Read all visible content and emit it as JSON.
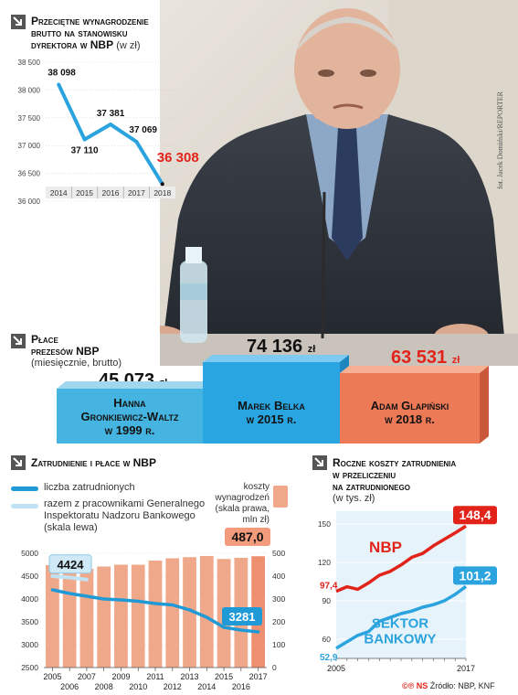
{
  "photo_credit": "fot. Jacek Domiński/REPORTER",
  "chart1": {
    "title_line1": "Przeciętne wynagrodzenie",
    "title_line2": "brutto na stanowisku",
    "title_line3": "dyrektora w NBP",
    "unit": "(w zł)"
  },
  "presidents": {
    "title_line1": "Płace",
    "title_line2": "prezesów NBP",
    "sub_line1": "(miesięcznie, brutto)",
    "items": [
      {
        "amount": "45 073",
        "unit": "zł",
        "name_line1": "Hanna",
        "name_line2": "Gronkiewicz-Waltz",
        "name_line3": "w 1999 r.",
        "value": 45073
      },
      {
        "amount": "74 136",
        "unit": "zł",
        "name_line1": "Marek Belka",
        "name_line2": "w 2015 r.",
        "value": 74136
      },
      {
        "amount": "63 531",
        "unit": "zł",
        "name_line1": "Adam Glapiński",
        "name_line2": "w 2018 r.",
        "value": 63531
      }
    ]
  },
  "chart2": {
    "title": "Zatrudnienie i płace w NBP",
    "legend_employees": "liczba zatrudnionych",
    "legend_total_line1": "razem z pracownikami Generalnego",
    "legend_total_line2": "Inspektoratu Nadzoru Bankowego",
    "legend_total_line3": "(skala lewa)",
    "legend_costs_line1": "koszty",
    "legend_costs_line2": "wynagrodzeń",
    "legend_costs_line3": "(skala prawa,",
    "legend_costs_line4": "mln zł)",
    "callout_total": "4424",
    "callout_employees": "3281",
    "callout_costs": "487,0"
  },
  "chart3": {
    "title_line1": "Roczne koszty zatrudnienia",
    "title_line2": "w przeliczeniu",
    "title_line3": "na zatrudnionego",
    "unit": "(w tys. zł)",
    "series1_name": "NBP",
    "series2_name_line1": "SEKTOR",
    "series2_name_line2": "BANKOWY",
    "nbp_start": "97,4",
    "nbp_end": "148,4",
    "bank_start": "52,9",
    "bank_end": "101,2"
  },
  "source": "Źródło: NBP, KNF",
  "source_logo": "©℗ NS",
  "chart_data": [
    {
      "type": "line",
      "title": "Przeciętne wynagrodzenie brutto na stanowisku dyrektora w NBP (w zł)",
      "x": [
        "2014",
        "2015",
        "2016",
        "2017",
        "2018"
      ],
      "values": [
        38098,
        37110,
        37381,
        37069,
        36308
      ],
      "labels": [
        "38 098",
        "37 110",
        "37 381",
        "37 069",
        "36 308"
      ],
      "ylim": [
        36000,
        38500
      ],
      "yticks": [
        36000,
        36500,
        37000,
        37500,
        38000,
        38500
      ],
      "ytick_labels": [
        "36 000",
        "36 500",
        "37 000",
        "37 500",
        "38 000",
        "38 500"
      ],
      "color": "#2aa3de",
      "highlight_color": "#e2231a"
    },
    {
      "type": "bar",
      "title": "Zatrudnienie i płace w NBP",
      "categories": [
        "2005",
        "2006",
        "2007",
        "2008",
        "2009",
        "2010",
        "2011",
        "2012",
        "2013",
        "2014",
        "2015",
        "2016",
        "2017"
      ],
      "x_labels_top": [
        "2005",
        "2007",
        "2009",
        "2011",
        "2013",
        "2015",
        "2017"
      ],
      "x_labels_bottom": [
        "2006",
        "2008",
        "2010",
        "2012",
        "2014",
        "2016"
      ],
      "series": [
        {
          "name": "koszty wynagrodzeń (skala prawa, mln zł)",
          "axis": "right",
          "kind": "bar",
          "color": "#f0a88a",
          "values": [
            448,
            430,
            432,
            442,
            450,
            450,
            468,
            478,
            483,
            488,
            475,
            480,
            487.0
          ]
        },
        {
          "name": "razem z pracownikami Generalnego Inspektoratu Nadzoru Bankowego (skala lewa)",
          "axis": "left",
          "kind": "line",
          "color": "#bfe3f5",
          "x": [
            "2005",
            "2006",
            "2007"
          ],
          "values": [
            4500,
            4470,
            4424
          ]
        },
        {
          "name": "liczba zatrudnionych",
          "axis": "left",
          "kind": "line",
          "color": "#1f9ad6",
          "values": [
            4200,
            4120,
            4060,
            4000,
            3980,
            3950,
            3900,
            3870,
            3760,
            3600,
            3380,
            3320,
            3281
          ]
        }
      ],
      "ylim_left": [
        2500,
        5000
      ],
      "yticks_left": [
        2500,
        3000,
        3500,
        4000,
        4500,
        5000
      ],
      "ylim_right": [
        0,
        500
      ],
      "yticks_right": [
        0,
        100,
        200,
        300,
        400,
        500
      ]
    },
    {
      "type": "line",
      "title": "Roczne koszty zatrudnienia w przeliczeniu na zatrudnionego (w tys. zł)",
      "x": [
        "2005",
        "2006",
        "2007",
        "2008",
        "2009",
        "2010",
        "2011",
        "2012",
        "2013",
        "2014",
        "2015",
        "2016",
        "2017"
      ],
      "x_labels": [
        "2005",
        "2017"
      ],
      "series": [
        {
          "name": "NBP",
          "color": "#e2231a",
          "values": [
            97.4,
            101,
            99,
            104,
            110,
            113,
            118,
            124,
            127,
            133,
            138,
            143,
            148.4
          ]
        },
        {
          "name": "SEKTOR BANKOWY",
          "color": "#2aa3de",
          "values": [
            52.9,
            58,
            63,
            66,
            74,
            77,
            80,
            82,
            85,
            87,
            90,
            95,
            101.2
          ]
        }
      ],
      "ylim": [
        45,
        160
      ],
      "yticks": [
        60,
        90,
        120,
        150
      ]
    }
  ]
}
